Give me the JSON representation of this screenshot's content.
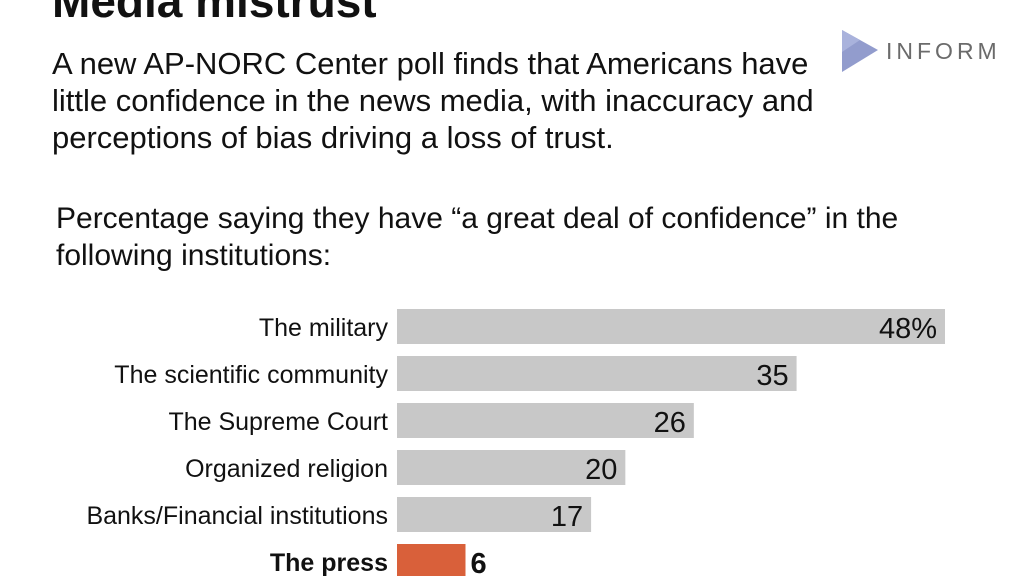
{
  "header": {
    "title": "Media mistrust",
    "subtitle": "A new AP-NORC Center poll finds that Americans have little confidence in the news media, with inaccuracy and perceptions of bias driving a loss of trust."
  },
  "logo": {
    "text": "INFORM",
    "icon": "inform-triangle-logo"
  },
  "question": "Percentage saying they have “a great deal of confidence” in the following institutions:",
  "colors": {
    "bar_default": "#c8c8c8",
    "bar_highlight": "#d9603a",
    "text": "#111111"
  },
  "chart_data": {
    "type": "bar",
    "orientation": "horizontal",
    "categories": [
      "The military",
      "The scientific community",
      "The Supreme Court",
      "Organized religion",
      "Banks/Financial institutions",
      "The press"
    ],
    "values": [
      48,
      35,
      26,
      20,
      17,
      6
    ],
    "data_labels": [
      "48%",
      "35",
      "26",
      "20",
      "17",
      "6"
    ],
    "highlight": "The press",
    "xlim": [
      0,
      48
    ]
  }
}
